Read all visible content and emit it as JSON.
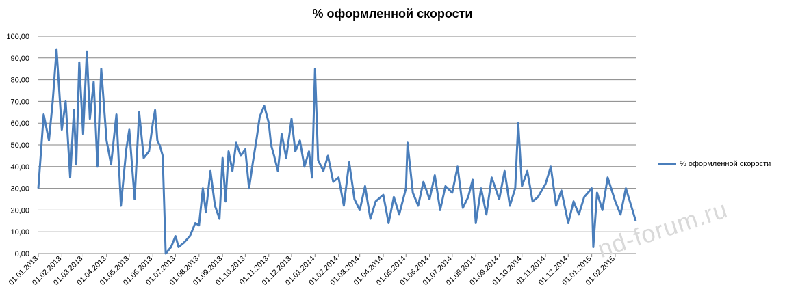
{
  "watermark": "nd-forum.ru",
  "chart_data": {
    "type": "line",
    "title": "% оформленной скорости",
    "xlabel": "",
    "ylabel": "",
    "ylim": [
      0,
      100
    ],
    "grid": true,
    "legend_position": "right",
    "color": "#4a7ebb",
    "y_ticks": [
      "0,00",
      "10,00",
      "20,00",
      "30,00",
      "40,00",
      "50,00",
      "60,00",
      "70,00",
      "80,00",
      "90,00",
      "100,00"
    ],
    "x_ticks": [
      "01.01.2013",
      "01.02.2013",
      "01.03.2013",
      "01.04.2013",
      "01.05.2013",
      "01.06.2013",
      "01.07.2013",
      "01.08.2013",
      "01.09.2013",
      "01.10.2013",
      "01.11.2013",
      "01.12.2013",
      "01.01.2014",
      "01.02.2014",
      "01.03.2014",
      "01.04.2014",
      "01.05.2014",
      "01.06.2014",
      "01.07.2014",
      "01.08.2014",
      "01.09.2014",
      "01.10.2014",
      "01.11.2014",
      "01.12.2014",
      "01.01.2015",
      "01.02.2015"
    ],
    "series": [
      {
        "name": "% оформленной скорости",
        "x": [
          "01.01.2013",
          "08.01.2013",
          "15.01.2013",
          "20.01.2013",
          "25.01.2013",
          "01.02.2013",
          "06.02.2013",
          "12.02.2013",
          "17.02.2013",
          "20.02.2013",
          "24.02.2013",
          "01.03.2013",
          "06.03.2013",
          "10.03.2013",
          "15.03.2013",
          "20.03.2013",
          "25.03.2013",
          "01.04.2013",
          "07.04.2013",
          "14.04.2013",
          "20.04.2013",
          "27.04.2013",
          "01.05.2013",
          "08.05.2013",
          "14.05.2013",
          "20.05.2013",
          "27.05.2013",
          "01.06.2013",
          "04.06.2013",
          "07.06.2013",
          "10.06.2013",
          "14.06.2013",
          "18.06.2013",
          "25.06.2013",
          "01.07.2013",
          "05.07.2013",
          "12.07.2013",
          "20.07.2013",
          "27.07.2013",
          "01.08.2013",
          "06.08.2013",
          "10.08.2013",
          "16.08.2013",
          "22.08.2013",
          "28.08.2013",
          "01.09.2013",
          "05.09.2013",
          "09.09.2013",
          "14.09.2013",
          "19.09.2013",
          "25.09.2013",
          "01.10.2013",
          "06.10.2013",
          "11.10.2013",
          "16.10.2013",
          "20.10.2013",
          "26.10.2013",
          "01.11.2013",
          "04.11.2013",
          "08.11.2013",
          "13.11.2013",
          "18.11.2013",
          "24.11.2013",
          "01.12.2013",
          "06.12.2013",
          "12.12.2013",
          "18.12.2013",
          "24.12.2013",
          "28.12.2013",
          "01.01.2014",
          "05.01.2014",
          "12.01.2014",
          "18.01.2014",
          "25.01.2014",
          "01.02.2014",
          "08.02.2014",
          "15.02.2014",
          "22.02.2014",
          "01.03.2014",
          "08.03.2014",
          "15.03.2014",
          "22.03.2014",
          "01.04.2014",
          "08.04.2014",
          "15.04.2014",
          "22.04.2014",
          "01.05.2014",
          "03.05.2014",
          "10.05.2014",
          "17.05.2014",
          "24.05.2014",
          "01.06.2014",
          "08.06.2014",
          "15.06.2014",
          "22.06.2014",
          "01.07.2014",
          "08.07.2014",
          "15.07.2014",
          "22.07.2014",
          "28.07.2014",
          "01.08.2014",
          "08.08.2014",
          "15.08.2014",
          "22.08.2014",
          "01.09.2014",
          "08.09.2014",
          "15.09.2014",
          "22.09.2014",
          "26.09.2014",
          "01.10.2014",
          "08.10.2014",
          "15.10.2014",
          "22.10.2014",
          "01.11.2014",
          "08.11.2014",
          "15.11.2014",
          "22.11.2014",
          "01.12.2014",
          "08.12.2014",
          "15.12.2014",
          "22.12.2014",
          "01.01.2015",
          "03.01.2015",
          "08.01.2015",
          "15.01.2015",
          "22.01.2015",
          "01.02.2015",
          "08.02.2015",
          "15.02.2015",
          "22.02.2015",
          "28.02.2015"
        ],
        "values": [
          30,
          64,
          52,
          70,
          94,
          57,
          70,
          35,
          66,
          41,
          88,
          55,
          93,
          62,
          79,
          40,
          85,
          52,
          41,
          64,
          22,
          48,
          57,
          25,
          65,
          44,
          47,
          60,
          66,
          52,
          50,
          45,
          0,
          3,
          8,
          3,
          5,
          8,
          14,
          13,
          30,
          19,
          38,
          22,
          16,
          44,
          24,
          47,
          38,
          51,
          45,
          48,
          30,
          42,
          53,
          63,
          68,
          60,
          50,
          45,
          38,
          55,
          44,
          62,
          47,
          52,
          40,
          47,
          35,
          85,
          43,
          38,
          45,
          33,
          35,
          22,
          42,
          25,
          20,
          31,
          16,
          24,
          27,
          14,
          26,
          18,
          30,
          51,
          28,
          22,
          33,
          25,
          36,
          20,
          31,
          28,
          40,
          21,
          26,
          34,
          14,
          30,
          18,
          35,
          25,
          38,
          22,
          30,
          60,
          31,
          38,
          24,
          26,
          32,
          40,
          22,
          29,
          14,
          24,
          18,
          26,
          30,
          3,
          28,
          20,
          35,
          24,
          18,
          30,
          22,
          15
        ]
      }
    ]
  }
}
